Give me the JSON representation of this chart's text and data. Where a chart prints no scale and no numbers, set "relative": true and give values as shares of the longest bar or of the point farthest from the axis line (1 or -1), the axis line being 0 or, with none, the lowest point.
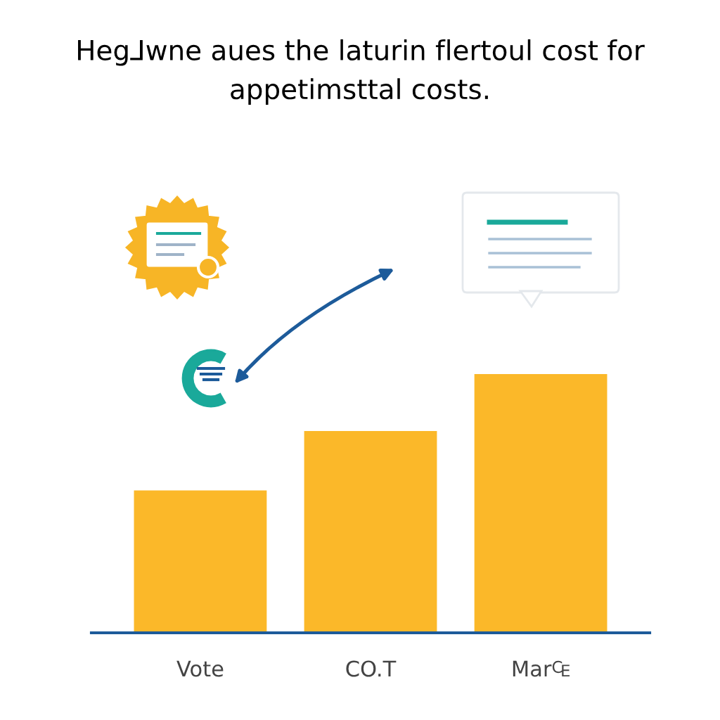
{
  "chart_data": {
    "type": "bar",
    "title": "Heg⅃wne aues the laturin flertoul cost for appetimsttal costs.",
    "categories": [
      "Vote",
      "CO.T",
      "Mar₠"
    ],
    "values": [
      0.55,
      0.78,
      1
    ],
    "color": "#fbb829",
    "relative": true,
    "grid": false,
    "legend": false
  }
}
